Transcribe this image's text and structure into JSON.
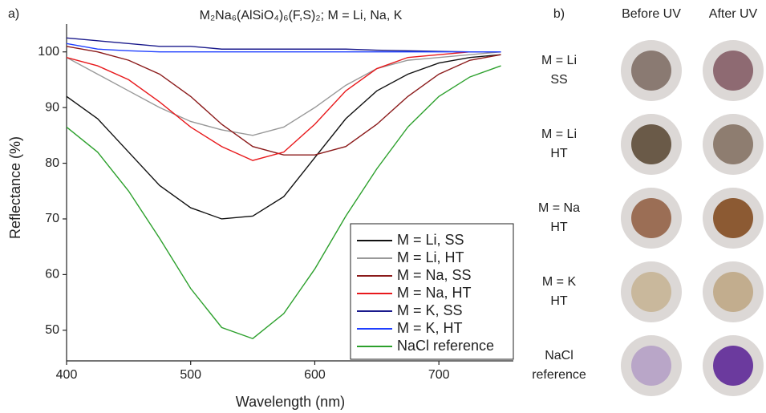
{
  "chart_data": {
    "type": "line",
    "panel_label": "a)",
    "title": "M₂Na₆(AlSiO₄)₆(F,S)₂; M = Li, Na, K",
    "x_label": "Wavelength (nm)",
    "y_label": "Reflectance (%)",
    "x": [
      400,
      425,
      450,
      475,
      500,
      525,
      550,
      575,
      600,
      625,
      650,
      675,
      700,
      725,
      750
    ],
    "series": [
      {
        "name": "M = Li, SS",
        "color": "#111111",
        "values": [
          92,
          88,
          82,
          76,
          72,
          70,
          70.5,
          74,
          81,
          88,
          93,
          96,
          98,
          99,
          99.5
        ]
      },
      {
        "name": "M = Li, HT",
        "color": "#999999",
        "values": [
          99,
          96,
          93,
          90,
          87.5,
          86,
          85,
          86.5,
          90,
          94,
          97,
          98.5,
          99,
          99.5,
          100
        ]
      },
      {
        "name": "M = Na, SS",
        "color": "#8b1a1a",
        "values": [
          101,
          100,
          98.5,
          96,
          92,
          87,
          83,
          81.5,
          81.5,
          83,
          87,
          92,
          96,
          98.5,
          99.5
        ]
      },
      {
        "name": "M = Na, HT",
        "color": "#e8191c",
        "values": [
          99,
          97.5,
          95,
          91,
          86.5,
          83,
          80.5,
          82,
          87,
          93,
          97,
          99,
          99.5,
          100,
          100
        ]
      },
      {
        "name": "M = K, SS",
        "color": "#1a1a8c",
        "values": [
          102.5,
          102,
          101.5,
          101,
          101,
          100.5,
          100.5,
          100.5,
          100.5,
          100.5,
          100.3,
          100.2,
          100.1,
          100,
          100
        ]
      },
      {
        "name": "M = K, HT",
        "color": "#1f3fff",
        "values": [
          101.5,
          100.5,
          100.2,
          100,
          100,
          100,
          100,
          100,
          100,
          100,
          100,
          100,
          100,
          100,
          100
        ]
      },
      {
        "name": "NaCl reference",
        "color": "#2ca02c",
        "values": [
          86.5,
          82,
          75,
          66.5,
          57.5,
          50.5,
          48.5,
          53,
          61,
          70.5,
          79,
          86.5,
          92,
          95.5,
          97.5
        ]
      }
    ],
    "xlim": [
      400,
      760
    ],
    "xticks": [
      400,
      500,
      600,
      700
    ],
    "ylim": [
      44.5,
      105
    ],
    "yticks": [
      50,
      60,
      70,
      80,
      90,
      100
    ],
    "grid": false,
    "legend": "lower right"
  },
  "panel_b": {
    "label": "b)",
    "columns": [
      "Before UV",
      "After UV"
    ],
    "rows": [
      [
        "M = Li",
        "SS"
      ],
      [
        "M = Li",
        "HT"
      ],
      [
        "M = Na",
        "HT"
      ],
      [
        "M = K",
        "HT"
      ],
      [
        "NaCl",
        "reference"
      ]
    ]
  }
}
